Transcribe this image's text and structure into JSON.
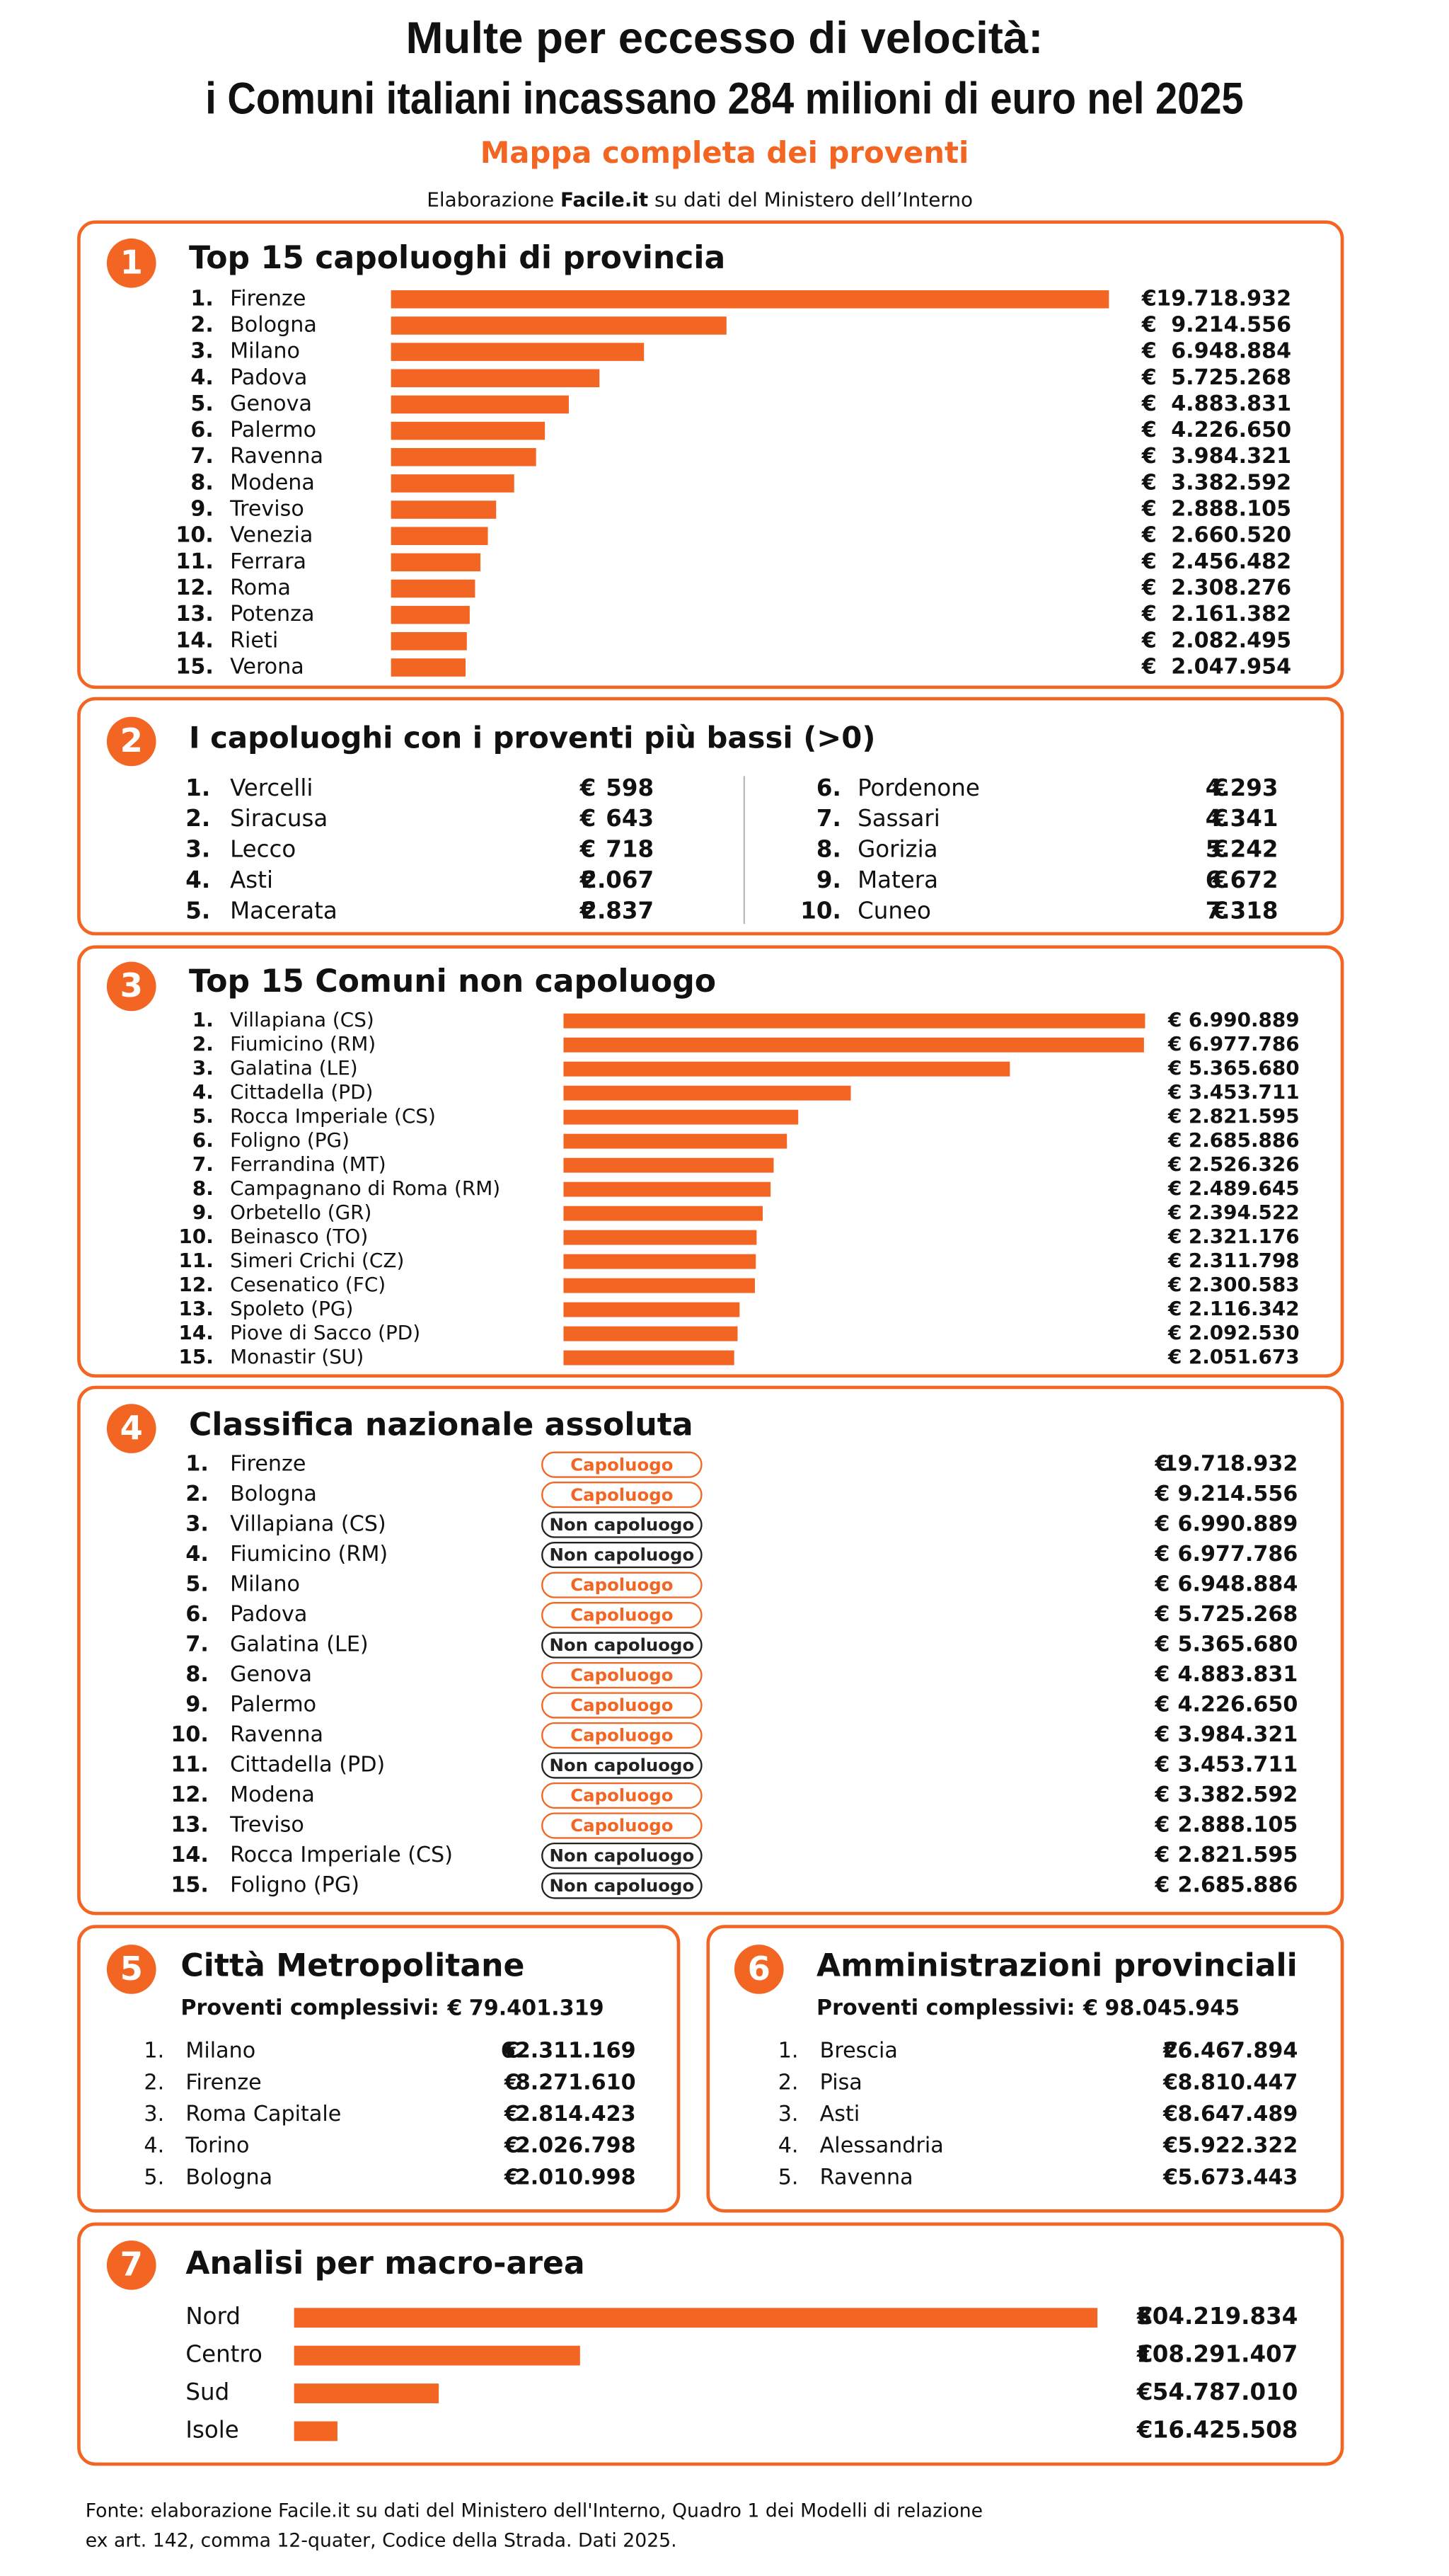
{
  "header": {
    "title_line1": "Multe per eccesso di velocità:",
    "title_line2": "i Comuni italiani incassano 284 milioni di euro nel 2025",
    "subtitle": "Mappa completa dei proventi",
    "source_prefix": "Elaborazione ",
    "source_brand": "Facile.it",
    "source_suffix": " su dati del Ministero dell’Interno"
  },
  "currency": "€",
  "chart_data": [
    {
      "type": "bar",
      "number": "1",
      "title": "Top 15 capoluoghi di provincia",
      "color": "#f26522",
      "ranks": [
        "1.",
        "2.",
        "3.",
        "4.",
        "5.",
        "6.",
        "7.",
        "8.",
        "9.",
        "10.",
        "11.",
        "12.",
        "13.",
        "14.",
        "15."
      ],
      "categories": [
        "Firenze",
        "Bologna",
        "Milano",
        "Padova",
        "Genova",
        "Palermo",
        "Ravenna",
        "Modena",
        "Treviso",
        "Venezia",
        "Ferrara",
        "Roma",
        "Potenza",
        "Rieti",
        "Verona"
      ],
      "values": [
        19718932,
        9214556,
        6948884,
        5725268,
        4883831,
        4226650,
        3984321,
        3382592,
        2888105,
        2660520,
        2456482,
        2308276,
        2161382,
        2082495,
        2047954
      ],
      "value_labels": [
        "19.718.932",
        "9.214.556",
        "6.948.884",
        "5.725.268",
        "4.883.831",
        "4.226.650",
        "3.984.321",
        "3.382.592",
        "2.888.105",
        "2.660.520",
        "2.456.482",
        "2.308.276",
        "2.161.382",
        "2.082.495",
        "2.047.954"
      ]
    },
    {
      "type": "bar",
      "number": "3",
      "title": "Top 15 Comuni non capoluogo",
      "color": "#f26522",
      "ranks": [
        "1.",
        "2.",
        "3.",
        "4.",
        "5.",
        "6.",
        "7.",
        "8.",
        "9.",
        "10.",
        "11.",
        "12.",
        "13.",
        "14.",
        "15."
      ],
      "categories": [
        "Villapiana (CS)",
        "Fiumicino (RM)",
        "Galatina (LE)",
        "Cittadella (PD)",
        "Rocca Imperiale (CS)",
        "Foligno (PG)",
        "Ferrandina (MT)",
        "Campagnano di Roma (RM)",
        "Orbetello (GR)",
        "Beinasco (TO)",
        "Simeri Crichi (CZ)",
        "Cesenatico (FC)",
        "Spoleto (PG)",
        "Piove di Sacco (PD)",
        "Monastir (SU)"
      ],
      "values": [
        6990889,
        6977786,
        5365680,
        3453711,
        2821595,
        2685886,
        2526326,
        2489645,
        2394522,
        2321176,
        2311798,
        2300583,
        2116342,
        2092530,
        2051673
      ],
      "value_labels": [
        "6.990.889",
        "6.977.786",
        "5.365.680",
        "3.453.711",
        "2.821.595",
        "2.685.886",
        "2.526.326",
        "2.489.645",
        "2.394.522",
        "2.321.176",
        "2.311.798",
        "2.300.583",
        "2.116.342",
        "2.092.530",
        "2.051.673"
      ]
    },
    {
      "type": "bar",
      "number": "7",
      "title": "Analisi per macro-area",
      "color": "#f26522",
      "categories": [
        "Nord",
        "Centro",
        "Sud",
        "Isole"
      ],
      "values": [
        304219834,
        108291407,
        54787010,
        16425508
      ],
      "value_labels": [
        "304.219.834",
        "108.291.407",
        "54.787.010",
        "16.425.508"
      ]
    }
  ],
  "lowest": {
    "number": "2",
    "title": "I capoluoghi con i proventi più bassi (>0)",
    "rows": [
      [
        "1.",
        "Vercelli",
        "598"
      ],
      [
        "2.",
        "Siracusa",
        "643"
      ],
      [
        "3.",
        "Lecco",
        "718"
      ],
      [
        "4.",
        "Asti",
        "2.067"
      ],
      [
        "5.",
        "Macerata",
        "2.837"
      ],
      [
        "6.",
        "Pordenone",
        "4.293"
      ],
      [
        "7.",
        "Sassari",
        "4.341"
      ],
      [
        "8.",
        "Gorizia",
        "5.242"
      ],
      [
        "9.",
        "Matera",
        "6.672"
      ],
      [
        "10.",
        "Cuneo",
        "7.318"
      ]
    ]
  },
  "ranking": {
    "number": "4",
    "title": "Classifica nazionale assoluta",
    "rows": [
      {
        "rank": "1.",
        "name": "Firenze",
        "tag": "Capoluogo",
        "tag_color": "#f26522",
        "value": "19.718.932"
      },
      {
        "rank": "2.",
        "name": "Bologna",
        "tag": "Capoluogo",
        "tag_color": "#f26522",
        "value": "9.214.556"
      },
      {
        "rank": "3.",
        "name": "Villapiana (CS)",
        "tag": "Non capoluogo",
        "tag_color": "#222222",
        "value": "6.990.889"
      },
      {
        "rank": "4.",
        "name": "Fiumicino (RM)",
        "tag": "Non capoluogo",
        "tag_color": "#222222",
        "value": "6.977.786"
      },
      {
        "rank": "5.",
        "name": "Milano",
        "tag": "Capoluogo",
        "tag_color": "#f26522",
        "value": "6.948.884"
      },
      {
        "rank": "6.",
        "name": "Padova",
        "tag": "Capoluogo",
        "tag_color": "#f26522",
        "value": "5.725.268"
      },
      {
        "rank": "7.",
        "name": "Galatina (LE)",
        "tag": "Non capoluogo",
        "tag_color": "#222222",
        "value": "5.365.680"
      },
      {
        "rank": "8.",
        "name": "Genova",
        "tag": "Capoluogo",
        "tag_color": "#f26522",
        "value": "4.883.831"
      },
      {
        "rank": "9.",
        "name": "Palermo",
        "tag": "Capoluogo",
        "tag_color": "#f26522",
        "value": "4.226.650"
      },
      {
        "rank": "10.",
        "name": "Ravenna",
        "tag": "Capoluogo",
        "tag_color": "#f26522",
        "value": "3.984.321"
      },
      {
        "rank": "11.",
        "name": "Cittadella (PD)",
        "tag": "Non capoluogo",
        "tag_color": "#222222",
        "value": "3.453.711"
      },
      {
        "rank": "12.",
        "name": "Modena",
        "tag": "Capoluogo",
        "tag_color": "#f26522",
        "value": "3.382.592"
      },
      {
        "rank": "13.",
        "name": "Treviso",
        "tag": "Capoluogo",
        "tag_color": "#f26522",
        "value": "2.888.105"
      },
      {
        "rank": "14.",
        "name": "Rocca Imperiale (CS)",
        "tag": "Non capoluogo",
        "tag_color": "#222222",
        "value": "2.821.595"
      },
      {
        "rank": "15.",
        "name": "Foligno (PG)",
        "tag": "Non capoluogo",
        "tag_color": "#222222",
        "value": "2.685.886"
      }
    ]
  },
  "metro": {
    "number": "5",
    "title": "Città Metropolitane",
    "total_label": "Proventi complessivi:",
    "total": "79.401.319",
    "rows": [
      [
        "1.",
        "Milano",
        "62.311.169"
      ],
      [
        "2.",
        "Firenze",
        "8.271.610"
      ],
      [
        "3.",
        "Roma Capitale",
        "2.814.423"
      ],
      [
        "4.",
        "Torino",
        "2.026.798"
      ],
      [
        "5.",
        "Bologna",
        "2.010.998"
      ]
    ]
  },
  "provinces": {
    "number": "6",
    "title": "Amministrazioni provinciali",
    "total_label": "Proventi complessivi:",
    "total": "98.045.945",
    "rows": [
      [
        "1.",
        "Brescia",
        "26.467.894"
      ],
      [
        "2.",
        "Pisa",
        "8.810.447"
      ],
      [
        "3.",
        "Asti",
        "8.647.489"
      ],
      [
        "4.",
        "Alessandria",
        "5.922.322"
      ],
      [
        "5.",
        "Ravenna",
        "5.673.443"
      ]
    ]
  },
  "footer": {
    "line1": "Fonte: elaborazione Facile.it su dati del Ministero dell'Interno, Quadro 1 dei Modelli di relazione",
    "line2": "ex art. 142, comma 12-quater,  Codice della Strada. Dati 2025."
  }
}
